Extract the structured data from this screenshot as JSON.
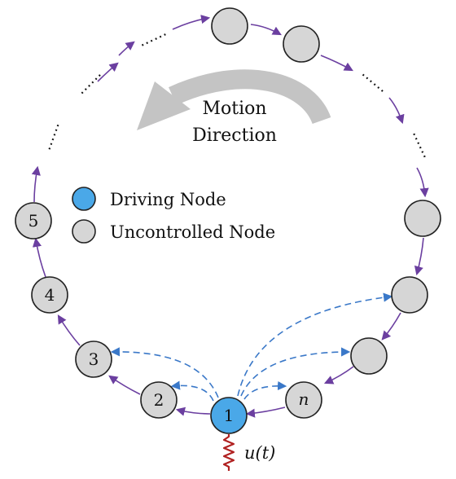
{
  "caption": {
    "line1": "Motion",
    "line2": "Direction"
  },
  "legend": {
    "driving_label": "Driving Node",
    "uncontrolled_label": "Uncontrolled Node"
  },
  "nodes": {
    "n1": "1",
    "n2": "2",
    "n3": "3",
    "n4": "4",
    "n5": "5",
    "nn": "n"
  },
  "input_label": "u(t)",
  "colors": {
    "driving_fill": "#4aa8e8",
    "uncontrolled_fill": "#d6d6d6",
    "ring_arrow": "#6b3fa0",
    "dashed_arrow": "#3a78c8",
    "motion_arrow": "#c4c4c4",
    "input_coil": "#b02020"
  }
}
